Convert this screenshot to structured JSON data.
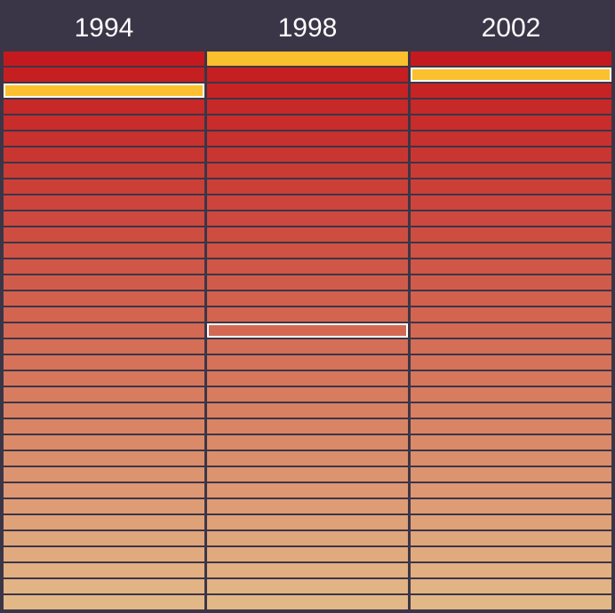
{
  "chart_data": {
    "type": "heatmap",
    "columns": [
      "1994",
      "1998",
      "2002"
    ],
    "rows_per_column": 35,
    "colors": {
      "background": "#3b3647",
      "top_rank": "#c41a1f",
      "bottom_rank": "#e3b887",
      "highlight": "#fbc02d",
      "outline": "#ffffff"
    },
    "highlighted_rank": [
      3,
      1,
      2
    ],
    "outlined_rank": [
      3,
      18,
      2
    ]
  }
}
